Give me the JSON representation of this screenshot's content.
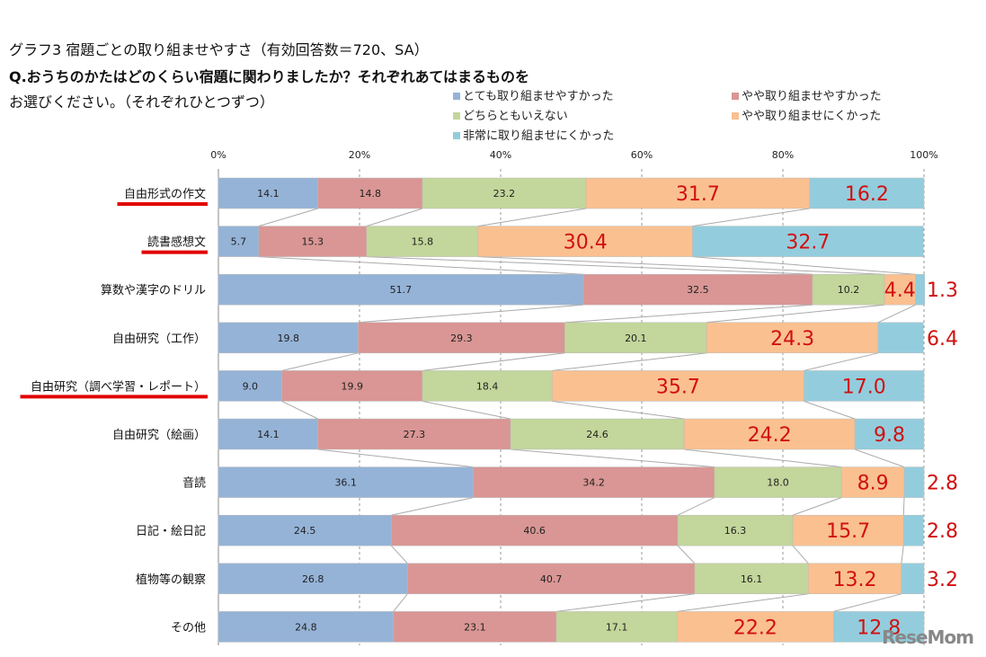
{
  "chart_data": {
    "type": "bar",
    "orientation": "horizontal-stacked-100",
    "title": "グラフ3  宿題ごとの取り組ませやすさ（有効回答数＝720、SA）",
    "question_line1": "Q.おうちのかたはどのくらい宿題に関わりましたか？それぞれあてはまるものを",
    "question_line2": "お選びください。（それぞれひとつずつ）",
    "xlim": [
      0,
      100
    ],
    "x_ticks": [
      "0%",
      "20%",
      "40%",
      "60%",
      "80%",
      "100%"
    ],
    "grid": true,
    "legend_position": "top-right",
    "categories": [
      "自由形式の作文",
      "読書感想文",
      "算数や漢字のドリル",
      "自由研究（工作）",
      "自由研究（調べ学習・レポート）",
      "自由研究（絵画）",
      "音読",
      "日記・絵日記",
      "植物等の観察",
      "その他"
    ],
    "highlighted_categories": [
      "自由形式の作文",
      "読書感想文",
      "自由研究（調べ学習・レポート）"
    ],
    "series": [
      {
        "name": "とても取り組ませやすかった",
        "color": "#95b3d7",
        "values": [
          14.1,
          5.7,
          51.7,
          19.8,
          9.0,
          14.1,
          36.1,
          24.5,
          26.8,
          24.8
        ]
      },
      {
        "name": "やや取り組ませやすかった",
        "color": "#d99694",
        "values": [
          14.8,
          15.3,
          32.5,
          29.3,
          19.9,
          27.3,
          34.2,
          40.6,
          40.7,
          23.1
        ]
      },
      {
        "name": "どちらともいえない",
        "color": "#c3d69b",
        "values": [
          23.2,
          15.8,
          10.2,
          20.1,
          18.4,
          24.6,
          18.0,
          16.3,
          16.1,
          17.1
        ]
      },
      {
        "name": "やや取り組ませにくかった",
        "color": "#fac090",
        "values": [
          31.7,
          30.4,
          4.4,
          24.3,
          35.7,
          24.2,
          8.9,
          15.7,
          13.2,
          22.2
        ]
      },
      {
        "name": "非常に取り組ませにくかった",
        "color": "#93cddd",
        "values": [
          16.2,
          32.7,
          1.3,
          6.4,
          17.0,
          9.8,
          2.8,
          2.8,
          3.2,
          12.8
        ]
      }
    ]
  },
  "logo": "ReseMom"
}
